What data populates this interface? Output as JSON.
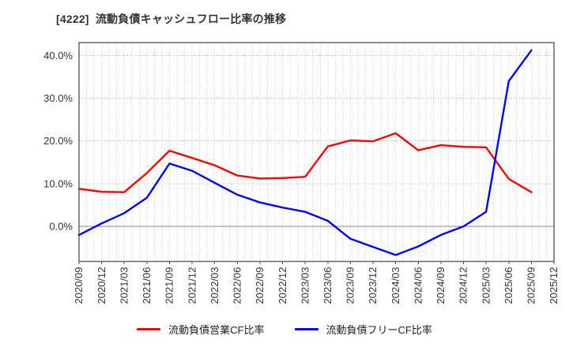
{
  "page": {
    "title": "[4222]  流動負債キャッシュフロー比率の推移"
  },
  "chart_data": {
    "type": "line",
    "title": "[4222]  流動負債キャッシュフロー比率の推移",
    "categories": [
      "2020/09",
      "2020/12",
      "2021/03",
      "2021/06",
      "2021/09",
      "2021/12",
      "2022/03",
      "2022/06",
      "2022/09",
      "2022/12",
      "2023/03",
      "2023/06",
      "2023/09",
      "2023/12",
      "2024/03",
      "2024/06",
      "2024/09",
      "2024/12",
      "2025/03",
      "2025/06",
      "2025/09",
      "2025/12"
    ],
    "series": [
      {
        "name": "流動負債営業CF比率",
        "color": "#ff0000",
        "values": [
          8.8,
          8.1,
          8.0,
          12.5,
          17.7,
          16.0,
          14.3,
          11.9,
          11.2,
          11.3,
          11.6,
          18.7,
          20.1,
          19.9,
          21.8,
          17.8,
          19.0,
          18.6,
          18.5,
          11.1,
          8.0,
          null
        ]
      },
      {
        "name": "流動負債フリーCF比率",
        "color": "#0000ff",
        "values": [
          -2.0,
          0.7,
          3.1,
          6.7,
          14.7,
          13.0,
          10.2,
          7.4,
          5.6,
          4.4,
          3.4,
          1.3,
          -2.9,
          -4.8,
          -6.7,
          -4.7,
          -2.0,
          0.0,
          3.4,
          34.0,
          41.2,
          null
        ]
      }
    ],
    "ylim": [
      -8.2,
      43.0
    ],
    "yticks": [
      {
        "value": 0,
        "label": "0.0%",
        "zero_line": true
      },
      {
        "value": 10,
        "label": "10.0%",
        "zero_line": false
      },
      {
        "value": 20,
        "label": "20.0%",
        "zero_line": false
      },
      {
        "value": 30,
        "label": "30.0%",
        "zero_line": false
      },
      {
        "value": 40,
        "label": "40.0%",
        "zero_line": false
      }
    ],
    "grid": {
      "horizontal": "dotted at each y tick",
      "vertical": "dotted monthly (3 per quarter)",
      "zero_line": "solid"
    },
    "legend_position": "bottom",
    "x_tick_label_rotation": 90
  }
}
